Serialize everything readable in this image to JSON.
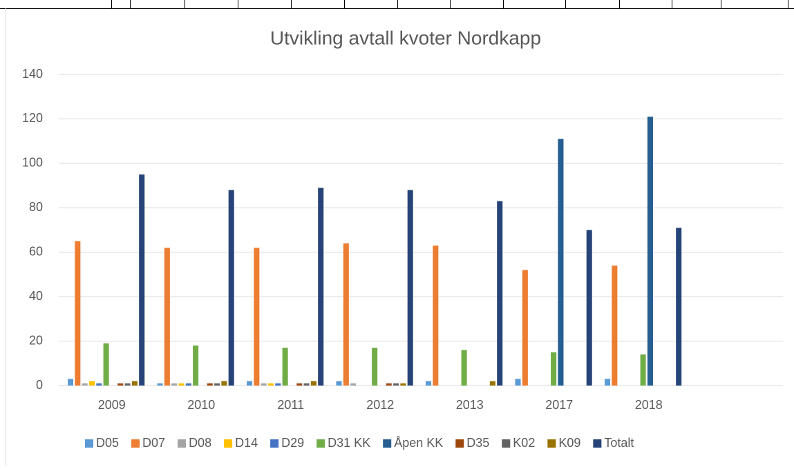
{
  "chart_data": {
    "type": "bar",
    "title": "Utvikling avtall kvoter Nordkapp",
    "categories": [
      "2009",
      "2010",
      "2011",
      "2012",
      "2013",
      "2017",
      "2018",
      null
    ],
    "series": [
      {
        "name": "D05",
        "color": "#5b9bd5",
        "values": [
          3,
          1,
          2,
          2,
          2,
          3,
          3,
          null
        ]
      },
      {
        "name": "D07",
        "color": "#ed7d31",
        "values": [
          65,
          62,
          62,
          64,
          63,
          52,
          54,
          null
        ]
      },
      {
        "name": "D08",
        "color": "#a5a5a5",
        "values": [
          1,
          1,
          1,
          1,
          0,
          0,
          0,
          null
        ]
      },
      {
        "name": "D14",
        "color": "#ffc000",
        "values": [
          2,
          1,
          1,
          0,
          0,
          0,
          0,
          null
        ]
      },
      {
        "name": "D29",
        "color": "#4472c4",
        "values": [
          1,
          1,
          1,
          0,
          0,
          0,
          0,
          null
        ]
      },
      {
        "name": "D31 KK",
        "color": "#70ad47",
        "values": [
          19,
          18,
          17,
          17,
          16,
          15,
          14,
          null
        ]
      },
      {
        "name": "Åpen KK",
        "color": "#255e91",
        "values": [
          0,
          0,
          0,
          0,
          0,
          111,
          121,
          null
        ]
      },
      {
        "name": "D35",
        "color": "#9e480e",
        "values": [
          1,
          1,
          1,
          1,
          0,
          0,
          0,
          null
        ]
      },
      {
        "name": "K02",
        "color": "#636363",
        "values": [
          1,
          1,
          1,
          1,
          0,
          0,
          0,
          null
        ]
      },
      {
        "name": "K09",
        "color": "#997300",
        "values": [
          2,
          2,
          2,
          1,
          2,
          0,
          0,
          null
        ]
      },
      {
        "name": "Totalt",
        "color": "#264478",
        "values": [
          95,
          88,
          89,
          88,
          83,
          70,
          71,
          null
        ]
      }
    ],
    "ylim": [
      0,
      140
    ],
    "yticks": [
      0,
      20,
      40,
      60,
      80,
      100,
      120,
      140
    ],
    "grid": true,
    "legend": "bottom"
  }
}
